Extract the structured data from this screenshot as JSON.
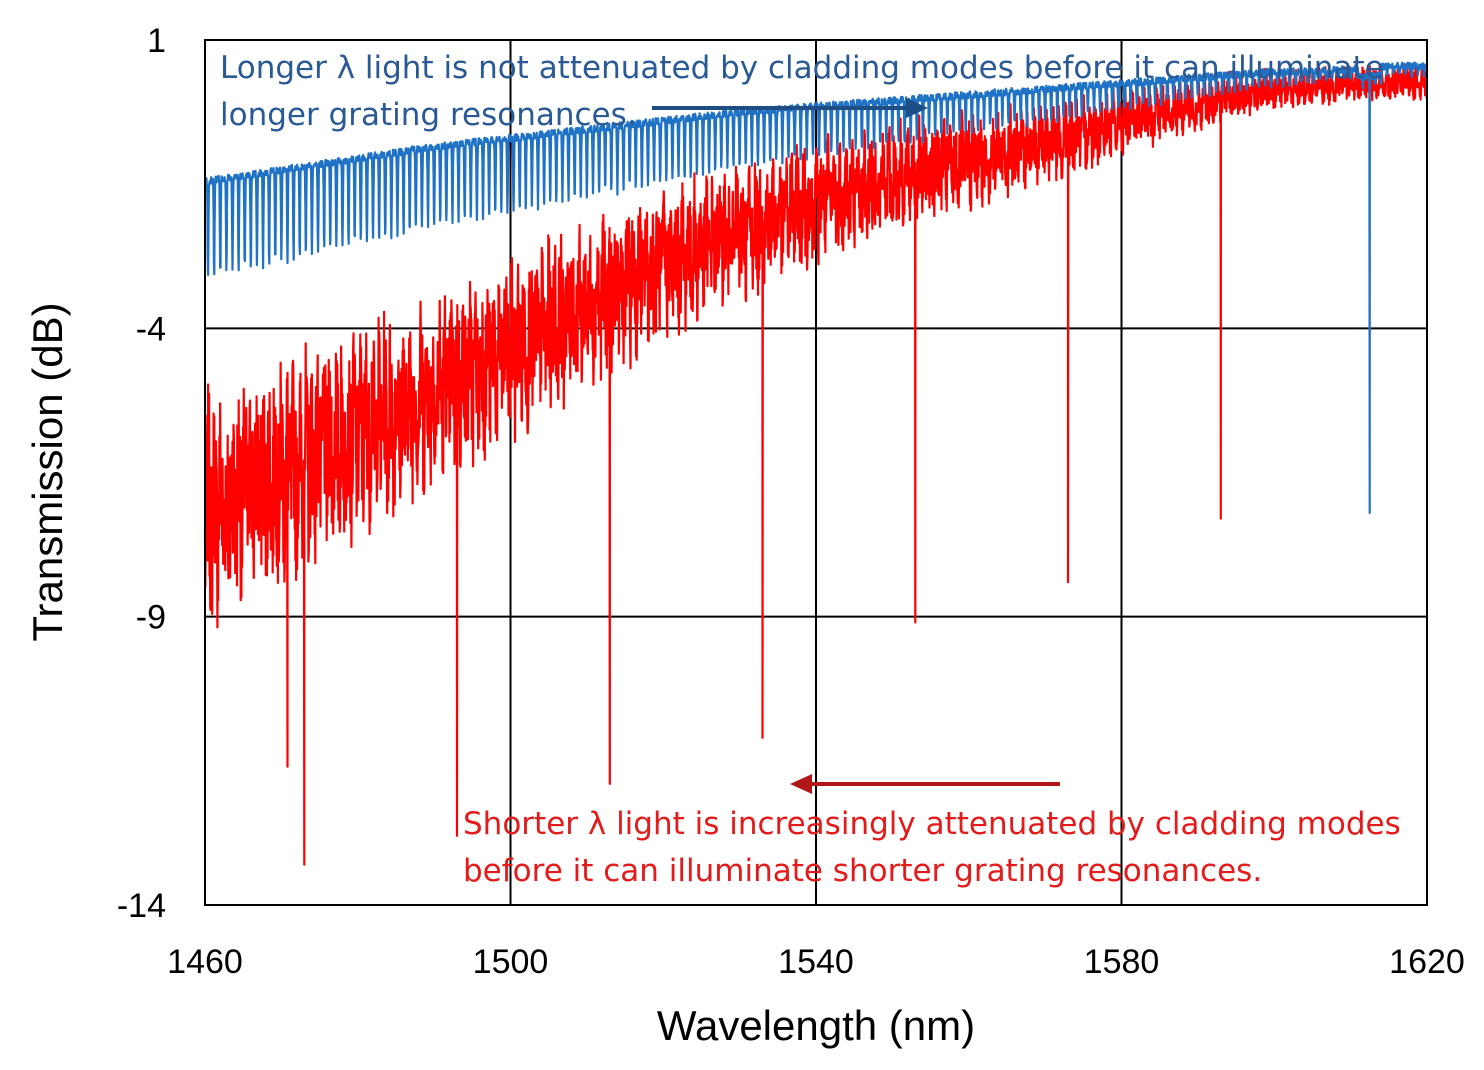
{
  "chart_data": {
    "type": "line",
    "xlabel": "Wavelength (nm)",
    "ylabel": "Transmission (dB)",
    "xlim": [
      1460,
      1620
    ],
    "ylim": [
      -14,
      1
    ],
    "xticks": [
      "1460",
      "1500",
      "1540",
      "1580",
      "1620"
    ],
    "yticks": [
      "1",
      "-4",
      "-9",
      "-14"
    ],
    "grid": true,
    "colors": {
      "blue": "#1f72c4",
      "red": "#ff0000",
      "blue_annotation": "#2a5a96",
      "red_annotation": "#e31b1b",
      "blue_arrow": "#1f4e85",
      "red_arrow": "#b01818"
    },
    "series": [
      {
        "color": "blue",
        "x": [
          1460,
          1470,
          1480,
          1490,
          1500,
          1510,
          1520,
          1530,
          1540,
          1550,
          1560,
          1570,
          1580,
          1590,
          1600,
          1605,
          1610,
          1615,
          1620
        ],
        "y": [
          -1.8,
          -1.6,
          -1.4,
          -1.2,
          -1.05,
          -0.9,
          -0.75,
          -0.6,
          -0.5,
          -0.4,
          -0.3,
          -0.2,
          -0.1,
          0.0,
          0.1,
          0.1,
          0.15,
          0.2,
          0.2
        ],
        "dips": [
          [
            1612.5,
            -7.2
          ]
        ]
      },
      {
        "color": "red",
        "x": [
          1460,
          1470,
          1480,
          1490,
          1500,
          1510,
          1520,
          1530,
          1540,
          1550,
          1560,
          1570,
          1580,
          1590,
          1600,
          1610,
          1620
        ],
        "y": [
          -7.2,
          -6.5,
          -5.8,
          -5.1,
          -4.4,
          -3.6,
          -2.9,
          -2.3,
          -1.8,
          -1.4,
          -1.1,
          -0.8,
          -0.4,
          -0.1,
          0.15,
          0.25,
          0.3
        ],
        "dips": [
          [
            1470.8,
            -11.6
          ],
          [
            1473.0,
            -13.3
          ],
          [
            1493.0,
            -12.8
          ],
          [
            1513.0,
            -11.9
          ],
          [
            1533.0,
            -11.1
          ],
          [
            1553.0,
            -9.1
          ],
          [
            1573.0,
            -8.4
          ],
          [
            1593.0,
            -7.3
          ]
        ]
      }
    ],
    "annotations": [
      {
        "color": "blue",
        "lines": [
          "Longer λ light is not attenuated by cladding modes before it can illuminate",
          "longer grating resonances."
        ]
      },
      {
        "color": "red",
        "lines": [
          "Shorter λ light is increasingly attenuated by cladding modes",
          "before it can illuminate shorter grating resonances."
        ]
      }
    ]
  }
}
